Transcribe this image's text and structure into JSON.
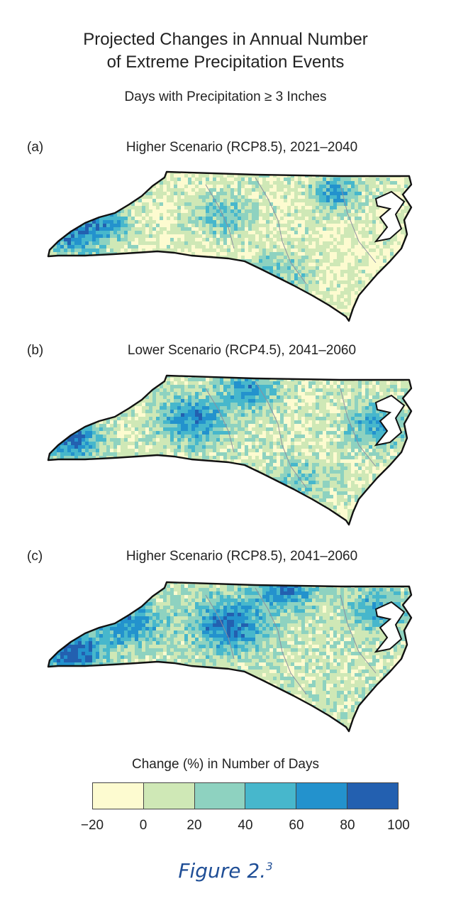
{
  "title_line1": "Projected Changes in Annual Number",
  "title_line2": "of Extreme Precipitation Events",
  "subtitle": "Days with Precipitation ≥ 3 Inches",
  "panels": [
    {
      "label": "(a)",
      "title": "Higher Scenario (RCP8.5), 2021–2040"
    },
    {
      "label": "(b)",
      "title": "Lower Scenario (RCP4.5), 2041–2060"
    },
    {
      "label": "(c)",
      "title": "Higher Scenario (RCP8.5), 2041–2060"
    }
  ],
  "legend": {
    "title": "Change (%) in Number of Days",
    "ticks": [
      "−20",
      "0",
      "20",
      "40",
      "60",
      "80",
      "100"
    ],
    "colors": [
      "#fdfbd0",
      "#cfe8b6",
      "#8ed2c0",
      "#47b7cc",
      "#2392cd",
      "#2360b0"
    ]
  },
  "caption": {
    "text": "Figure 2.",
    "sup": "3"
  }
}
